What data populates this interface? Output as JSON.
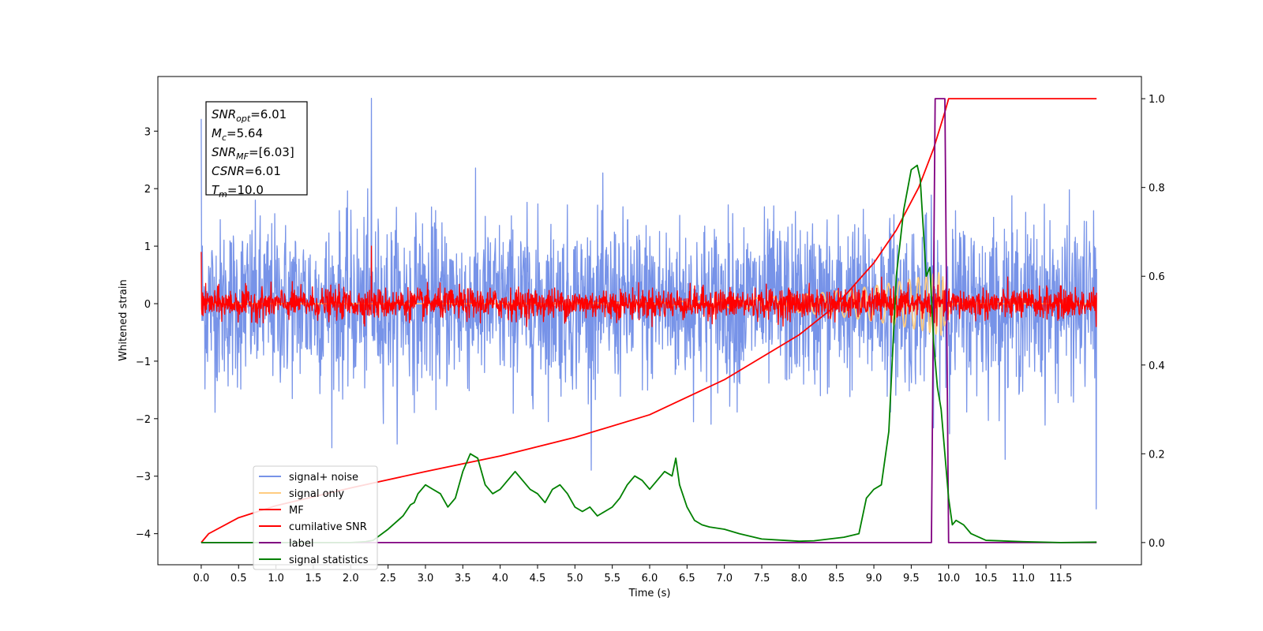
{
  "chart_data": {
    "type": "line",
    "xlabel": "Time (s)",
    "ylabel": "Whitened strain",
    "xlim": [
      -0.58,
      12.58
    ],
    "ylim": [
      -4.54,
      3.95
    ],
    "y2lim": [
      -0.05,
      1.05
    ],
    "x_ticks": [
      0.0,
      0.5,
      1.0,
      1.5,
      2.0,
      2.5,
      3.0,
      3.5,
      4.0,
      4.5,
      5.0,
      5.5,
      6.0,
      6.5,
      7.0,
      7.5,
      8.0,
      8.5,
      9.0,
      9.5,
      10.0,
      10.5,
      11.0,
      11.5
    ],
    "x_tick_labels": [
      "0.0",
      "0.5",
      "1.0",
      "1.5",
      "2.0",
      "2.5",
      "3.0",
      "3.5",
      "4.0",
      "4.5",
      "5.0",
      "5.5",
      "6.0",
      "6.5",
      "7.0",
      "7.5",
      "8.0",
      "8.5",
      "9.0",
      "9.5",
      "10.0",
      "10.5",
      "11.0",
      "11.5"
    ],
    "y_ticks": [
      3,
      2,
      1,
      0,
      -1,
      -2,
      -3,
      -4
    ],
    "y_tick_labels": [
      "3",
      "2",
      "1",
      "0",
      "−1",
      "−2",
      "−3",
      "−4"
    ],
    "y2_ticks": [
      1.0,
      0.8,
      0.6,
      0.4,
      0.2,
      0.0
    ],
    "y2_tick_labels": [
      "1.0",
      "0.8",
      "0.6",
      "0.4",
      "0.2",
      "0.0"
    ],
    "legend_location": "lower-left",
    "annotation": {
      "lines": [
        {
          "base": "SNR",
          "sub": "opt",
          "value": "=6.01"
        },
        {
          "base": "M",
          "sub": "c",
          "value": "=5.64"
        },
        {
          "base": "SNR",
          "sub": "MF",
          "value": "=[6.03]"
        },
        {
          "base": "CSNR",
          "sub": "",
          "value": "=6.01"
        },
        {
          "base": "T",
          "sub": "m",
          "value": "=10.0"
        }
      ]
    },
    "series": [
      {
        "name": "signal+ noise",
        "color": "#7793e8",
        "axis": "left",
        "kind": "noise",
        "x_start": 0.0,
        "x_end": 11.98,
        "amplitude": 1.0,
        "peak_max": 3.57,
        "peak_min": -3.57
      },
      {
        "name": "signal only",
        "color": "#ffcc80",
        "axis": "left",
        "kind": "chirp",
        "x_start": 0.0,
        "x_end": 11.98,
        "peak_time": 9.9,
        "peak_amplitude": 0.55
      },
      {
        "name": "MF",
        "color": "#ff0000",
        "axis": "left",
        "kind": "noise",
        "x_start": 0.0,
        "x_end": 11.98,
        "amplitude": 0.18,
        "peak_max": 1.0,
        "peak_min": -0.4
      },
      {
        "name": "cumilative SNR",
        "color": "#ff0000",
        "axis": "right",
        "x": [
          0.0,
          0.1,
          0.5,
          1.0,
          2.0,
          3.0,
          4.0,
          5.0,
          6.0,
          7.0,
          8.0,
          8.5,
          9.0,
          9.3,
          9.6,
          9.8,
          9.95,
          10.0,
          11.98
        ],
        "y": [
          0.0,
          0.02,
          0.056,
          0.083,
          0.123,
          0.16,
          0.195,
          0.237,
          0.288,
          0.367,
          0.468,
          0.535,
          0.63,
          0.704,
          0.8,
          0.888,
          0.97,
          1.0,
          1.0
        ]
      },
      {
        "name": "label",
        "color": "#800080",
        "axis": "right",
        "x": [
          0.0,
          9.77,
          9.82,
          9.95,
          10.0,
          11.98
        ],
        "y": [
          0.0,
          0.0,
          1.0,
          1.0,
          0.0,
          0.0
        ]
      },
      {
        "name": "signal statistics",
        "color": "#008000",
        "axis": "right",
        "x": [
          0.0,
          1.5,
          2.0,
          2.2,
          2.3,
          2.5,
          2.7,
          2.8,
          2.85,
          2.9,
          3.0,
          3.1,
          3.2,
          3.3,
          3.4,
          3.5,
          3.6,
          3.7,
          3.8,
          3.9,
          4.0,
          4.1,
          4.2,
          4.3,
          4.4,
          4.5,
          4.6,
          4.7,
          4.8,
          4.9,
          5.0,
          5.1,
          5.2,
          5.3,
          5.4,
          5.5,
          5.6,
          5.7,
          5.8,
          5.9,
          6.0,
          6.1,
          6.2,
          6.3,
          6.35,
          6.4,
          6.5,
          6.6,
          6.7,
          6.8,
          7.0,
          7.2,
          7.5,
          7.8,
          8.0,
          8.2,
          8.4,
          8.6,
          8.8,
          8.9,
          9.0,
          9.1,
          9.2,
          9.3,
          9.4,
          9.5,
          9.58,
          9.62,
          9.7,
          9.75,
          9.8,
          9.85,
          9.9,
          9.95,
          10.0,
          10.05,
          10.1,
          10.2,
          10.3,
          10.5,
          11.0,
          11.5,
          11.98
        ],
        "y": [
          0.0,
          0.0,
          0.0,
          0.002,
          0.005,
          0.03,
          0.06,
          0.085,
          0.09,
          0.11,
          0.13,
          0.12,
          0.11,
          0.08,
          0.1,
          0.16,
          0.2,
          0.19,
          0.13,
          0.11,
          0.12,
          0.14,
          0.16,
          0.14,
          0.12,
          0.11,
          0.09,
          0.12,
          0.13,
          0.11,
          0.08,
          0.07,
          0.08,
          0.06,
          0.07,
          0.08,
          0.1,
          0.13,
          0.15,
          0.14,
          0.12,
          0.14,
          0.16,
          0.15,
          0.19,
          0.13,
          0.08,
          0.05,
          0.04,
          0.035,
          0.03,
          0.02,
          0.008,
          0.005,
          0.003,
          0.004,
          0.008,
          0.012,
          0.02,
          0.1,
          0.12,
          0.13,
          0.25,
          0.6,
          0.75,
          0.84,
          0.85,
          0.82,
          0.6,
          0.62,
          0.45,
          0.35,
          0.3,
          0.2,
          0.1,
          0.04,
          0.05,
          0.04,
          0.02,
          0.005,
          0.002,
          0.0,
          0.001
        ]
      }
    ]
  }
}
